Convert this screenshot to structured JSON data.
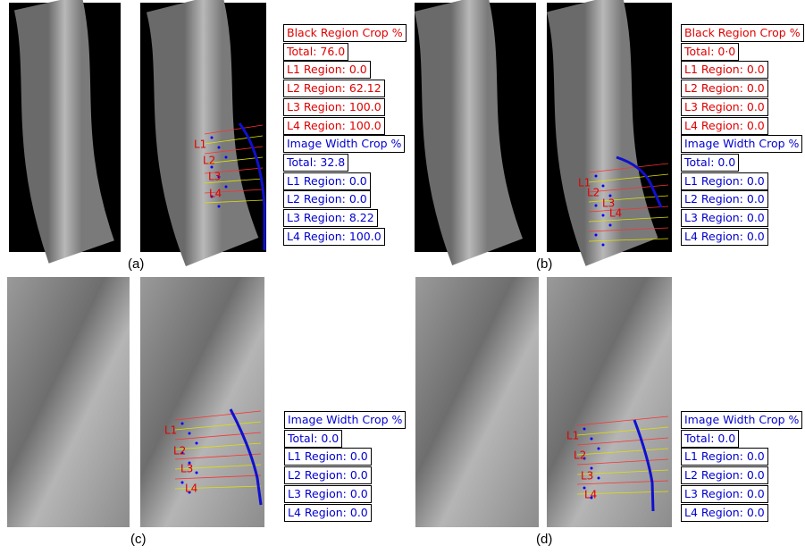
{
  "panels": [
    {
      "label": "(a)",
      "vertebra_labels": [
        "L1",
        "L2",
        "L3",
        "L4"
      ],
      "black_region": [
        "Black Region Crop %",
        "Total: 76.0",
        "L1 Region: 0.0",
        "L2 Region: 62.12",
        "L3 Region: 100.0",
        "L4 Region: 100.0"
      ],
      "image_width": [
        "Image Width Crop %",
        "Total: 32.8",
        "L1 Region: 0.0",
        "L2 Region: 0.0",
        "L3 Region: 8.22",
        "L4 Region: 100.0"
      ]
    },
    {
      "label": "(b)",
      "vertebra_labels": [
        "L1",
        "L2",
        "L3",
        "L4"
      ],
      "black_region": [
        "Black Region Crop %",
        "Total: 0·0",
        "L1 Region: 0.0",
        "L2 Region: 0.0",
        "L3 Region: 0.0",
        "L4 Region: 0.0"
      ],
      "image_width": [
        "Image Width Crop %",
        "Total: 0.0",
        "L1 Region: 0.0",
        "L2 Region: 0.0",
        "L3 Region: 0.0",
        "L4 Region: 0.0"
      ]
    },
    {
      "label": "(c)",
      "vertebra_labels": [
        "L1",
        "L2",
        "L3",
        "L4"
      ],
      "image_width": [
        "Image Width Crop %",
        "Total: 0.0",
        "L1 Region: 0.0",
        "L2 Region: 0.0",
        "L3 Region: 0.0",
        "L4 Region: 0.0"
      ]
    },
    {
      "label": "(d)",
      "vertebra_labels": [
        "L1",
        "L2",
        "L3",
        "L4"
      ],
      "image_width": [
        "Image Width Crop %",
        "Total: 0.0",
        "L1 Region: 0.0",
        "L2 Region: 0.0",
        "L3 Region: 0.0",
        "L4 Region: 0.0"
      ]
    }
  ]
}
